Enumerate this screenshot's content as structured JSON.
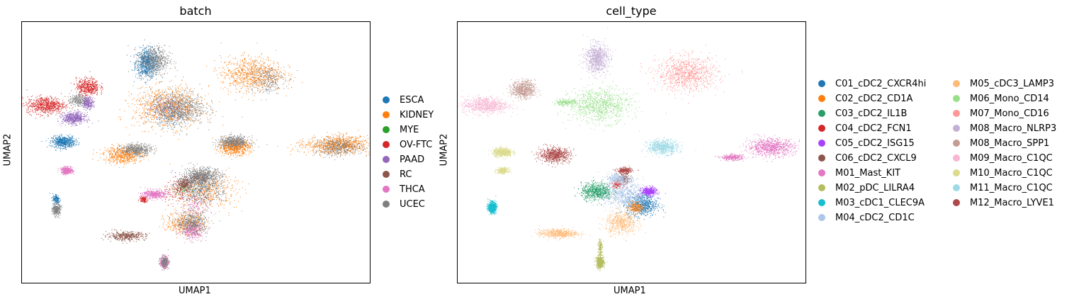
{
  "chart_data": [
    {
      "type": "scatter",
      "title": "batch",
      "xlabel": "UMAP1",
      "ylabel": "UMAP2",
      "xlim": [
        0,
        100
      ],
      "ylim": [
        0,
        100
      ],
      "grid": false,
      "legend_position": "right",
      "series": [
        {
          "name": "ESCA",
          "color": "#1f77b4",
          "clusters": [
            [
              36,
              84,
              3,
              5,
              0.5
            ],
            [
              12,
              54,
              3,
              2,
              0.4
            ],
            [
              43,
              65,
              5,
              5,
              0.15
            ],
            [
              50,
              38,
              5,
              5,
              0.15
            ],
            [
              10,
              32,
              1,
              2,
              0.1
            ]
          ]
        },
        {
          "name": "KIDNEY",
          "color": "#ff7f0e",
          "clusters": [
            [
              66,
              80,
              8,
              6,
              0.6
            ],
            [
              42,
              67,
              9,
              7,
              0.7
            ],
            [
              61,
              52,
              4,
              2.5,
              0.5
            ],
            [
              92,
              53,
              7,
              3,
              0.45
            ],
            [
              29,
              49,
              5,
              3,
              0.4
            ],
            [
              53,
              35,
              8,
              6,
              0.35
            ],
            [
              47,
              23,
              5,
              4,
              0.3
            ],
            [
              88,
              52,
              9,
              3,
              0.2
            ]
          ]
        },
        {
          "name": "MYE",
          "color": "#2ca02c",
          "clusters": [
            [
              46,
              36,
              2,
              2,
              0.05
            ]
          ]
        },
        {
          "name": "OV-FTC",
          "color": "#d62728",
          "clusters": [
            [
              7,
              68,
              5,
              3,
              0.5
            ],
            [
              19,
              75,
              3,
              3,
              0.35
            ],
            [
              45,
              35,
              4,
              4,
              0.1
            ],
            [
              35,
              32,
              1,
              1,
              0.1
            ]
          ]
        },
        {
          "name": "PAAD",
          "color": "#9467bd",
          "clusters": [
            [
              15,
              63,
              3,
              2,
              0.4
            ],
            [
              19,
              69,
              1.5,
              2,
              0.2
            ],
            [
              42,
              67,
              5,
              4,
              0.1
            ]
          ]
        },
        {
          "name": "RC",
          "color": "#8c564b",
          "clusters": [
            [
              30,
              18,
              5,
              1.5,
              0.3
            ],
            [
              47,
              38,
              2,
              2,
              0.2
            ],
            [
              51,
              40,
              3,
              2,
              0.15
            ]
          ]
        },
        {
          "name": "THCA",
          "color": "#e377c2",
          "clusters": [
            [
              13,
              43,
              1.5,
              1.2,
              0.3
            ],
            [
              38,
              34,
              3,
              1.5,
              0.3
            ],
            [
              49,
              20,
              3,
              3,
              0.25
            ],
            [
              41,
              8,
              1,
              2,
              0.25
            ],
            [
              50,
              30,
              4,
              4,
              0.1
            ]
          ]
        },
        {
          "name": "UCEC",
          "color": "#7f7f7f",
          "clusters": [
            [
              38,
              85,
              4,
              5,
              0.45
            ],
            [
              45,
              67,
              7,
              6,
              0.55
            ],
            [
              61,
              54,
              4,
              2,
              0.4
            ],
            [
              33,
              51,
              4,
              2,
              0.35
            ],
            [
              52,
              41,
              5,
              3,
              0.4
            ],
            [
              49,
              23,
              4,
              4,
              0.35
            ],
            [
              91,
              52,
              6,
              3,
              0.3
            ],
            [
              70,
              78,
              5,
              5,
              0.2
            ],
            [
              10,
              28,
              1,
              2,
              0.2
            ],
            [
              41,
              8,
              1,
              2,
              0.15
            ],
            [
              16,
              70,
              2,
              2,
              0.15
            ],
            [
              52,
              35,
              6,
              5,
              0.25
            ]
          ]
        }
      ]
    },
    {
      "type": "scatter",
      "title": "cell_type",
      "xlabel": "UMAP1",
      "ylabel": "UMAP2",
      "xlim": [
        0,
        100
      ],
      "ylim": [
        0,
        100
      ],
      "grid": false,
      "legend_position": "right",
      "series": [
        {
          "name": "C01_cDC2_CXCR4hi",
          "color": "#1f77b4",
          "clusters": [
            [
              53,
              30,
              4,
              4,
              0.5
            ]
          ]
        },
        {
          "name": "C02_cDC2_CD1A",
          "color": "#ff7f0e",
          "clusters": [
            [
              51,
              29,
              2,
              2,
              0.15
            ]
          ]
        },
        {
          "name": "C03_cDC2_IL1B",
          "color": "#279e68",
          "clusters": [
            [
              40,
              35,
              4,
              3,
              0.5
            ]
          ]
        },
        {
          "name": "C04_cDC2_FCN1",
          "color": "#d62728",
          "clusters": [
            [
              46,
              38,
              1.5,
              1.5,
              0.1
            ]
          ]
        },
        {
          "name": "C05_cDC2_ISG15",
          "color": "#aa40fc",
          "clusters": [
            [
              55,
              35,
              2,
              1.5,
              0.3
            ]
          ]
        },
        {
          "name": "C06_cDC2_CXCL9",
          "color": "#8c564b",
          "clusters": [
            [
              48,
              40,
              1.5,
              1.5,
              0.1
            ]
          ]
        },
        {
          "name": "M01_Mast_KIT",
          "color": "#e377c2",
          "clusters": [
            [
              90,
              52,
              6,
              3,
              0.6
            ],
            [
              79,
              48,
              3,
              1,
              0.2
            ]
          ]
        },
        {
          "name": "M02_pDC_LILRA4",
          "color": "#b5bd61",
          "clusters": [
            [
              41,
              8,
              1,
              2,
              0.4
            ],
            [
              41,
              14,
              0.5,
              3,
              0.1
            ]
          ]
        },
        {
          "name": "M03_cDC1_CLEC9A",
          "color": "#17becf",
          "clusters": [
            [
              10,
              29,
              1,
              1.8,
              0.5
            ]
          ]
        },
        {
          "name": "M04_cDC2_CD1C",
          "color": "#aec7e8",
          "clusters": [
            [
              48,
              34,
              5,
              5,
              0.5
            ],
            [
              46,
              40,
              3,
              2,
              0.2
            ]
          ]
        },
        {
          "name": "M05_cDC3_LAMP3",
          "color": "#ffbb78",
          "clusters": [
            [
              29,
              19,
              5,
              1.5,
              0.4
            ],
            [
              47,
              23,
              4,
              4,
              0.4
            ]
          ]
        },
        {
          "name": "M06_Mono_CD14",
          "color": "#98df8a",
          "clusters": [
            [
              41,
              68,
              8,
              6,
              0.7
            ],
            [
              31,
              69,
              3,
              1,
              0.15
            ]
          ]
        },
        {
          "name": "M07_Mono_CD16",
          "color": "#ff9896",
          "clusters": [
            [
              66,
              80,
              8,
              6,
              0.7
            ]
          ]
        },
        {
          "name": "M08_Macro_NLRP3",
          "color": "#c5b0d5",
          "clusters": [
            [
              40,
              86,
              3,
              5,
              0.6
            ]
          ]
        },
        {
          "name": "M08_Macro_SPP1",
          "color": "#c49c94",
          "clusters": [
            [
              19,
              74,
              3,
              3,
              0.5
            ]
          ]
        },
        {
          "name": "M09_Macro_C1QC",
          "color": "#f7b6d2",
          "clusters": [
            [
              8,
              68,
              6,
              3,
              0.6
            ]
          ]
        },
        {
          "name": "M10_Macro_C1QC",
          "color": "#dbdb8d",
          "clusters": [
            [
              13,
              50,
              2.5,
              1.5,
              0.4
            ],
            [
              13,
              43,
              1.5,
              1,
              0.2
            ]
          ]
        },
        {
          "name": "M11_Macro_C1QC",
          "color": "#9edae5",
          "clusters": [
            [
              59,
              52,
              4,
              2.5,
              0.5
            ]
          ]
        },
        {
          "name": "M12_Macro_LYVE1",
          "color": "#ad494a",
          "clusters": [
            [
              28,
              49,
              4,
              2.5,
              0.5
            ],
            [
              48,
              43,
              2,
              1,
              0.2
            ]
          ]
        }
      ]
    }
  ]
}
